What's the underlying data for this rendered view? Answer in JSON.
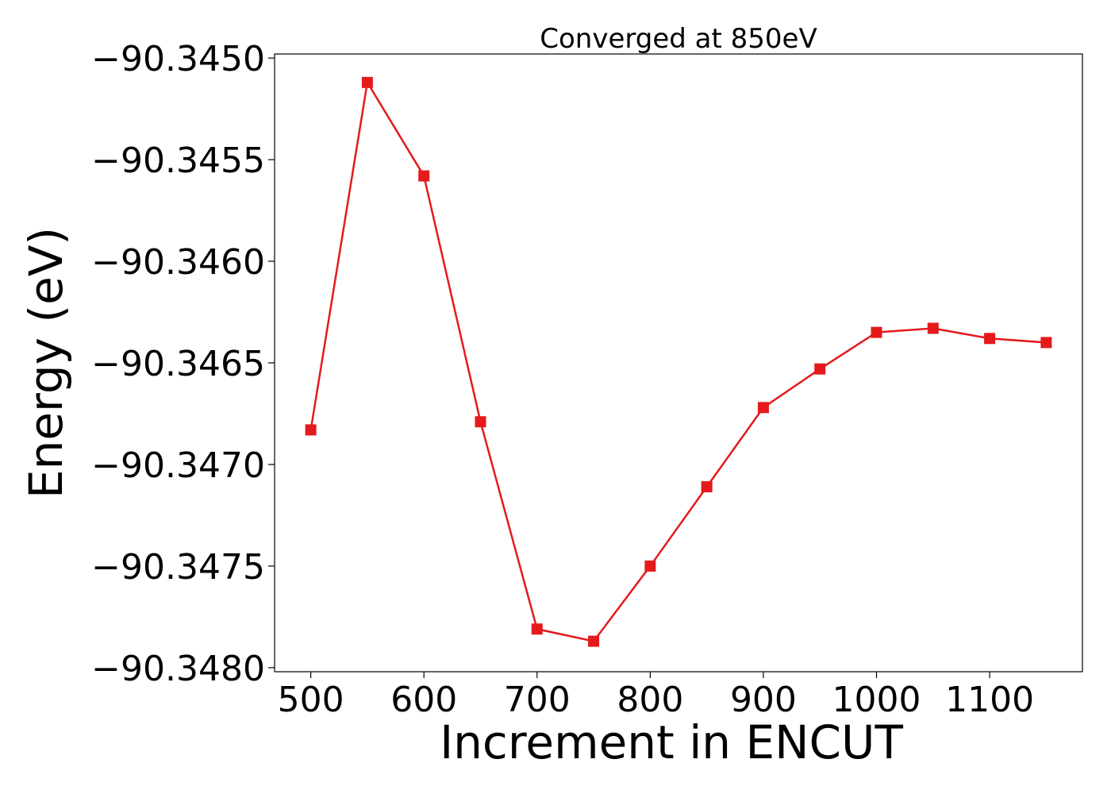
{
  "chart_data": {
    "type": "line",
    "title": "Converged at 850eV",
    "xlabel": "Increment in ENCUT",
    "ylabel": "Energy (eV)",
    "x": [
      500,
      550,
      600,
      650,
      700,
      750,
      800,
      850,
      900,
      950,
      1000,
      1050,
      1100,
      1150
    ],
    "series": [
      {
        "values": [
          -90.34683,
          -90.34512,
          -90.34558,
          -90.34679,
          -90.34781,
          -90.34787,
          -90.3475,
          -90.34711,
          -90.34672,
          -90.34653,
          -90.34635,
          -90.34633,
          -90.34638,
          -90.3464
        ],
        "color": "#e41a1c",
        "marker": "square"
      }
    ],
    "xlim": [
      468,
      1182
    ],
    "ylim": [
      -90.34802,
      -90.34498
    ],
    "xticks": [
      500,
      600,
      700,
      800,
      900,
      1000,
      1100
    ],
    "xtick_labels": [
      "500",
      "600",
      "700",
      "800",
      "900",
      "1000",
      "1100"
    ],
    "yticks": [
      -90.345,
      -90.3455,
      -90.346,
      -90.3465,
      -90.347,
      -90.3475,
      -90.348
    ],
    "ytick_labels": [
      "−90.3450",
      "−90.3455",
      "−90.3460",
      "−90.3465",
      "−90.3470",
      "−90.3475",
      "−90.3480"
    ],
    "grid": false,
    "legend": "none"
  }
}
